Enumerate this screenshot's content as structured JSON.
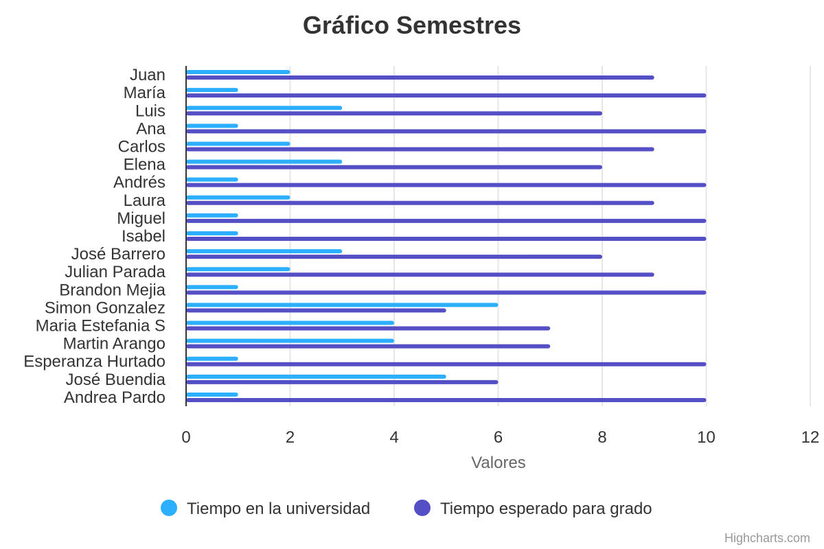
{
  "chart_data": {
    "type": "bar",
    "orientation": "horizontal",
    "title": "Gráfico Semestres",
    "xlabel": "",
    "ylabel": "Valores",
    "categories": [
      "Juan",
      "María",
      "Luis",
      "Ana",
      "Carlos",
      "Elena",
      "Andrés",
      "Laura",
      "Miguel",
      "Isabel",
      "José Barrero",
      "Julian Parada",
      "Brandon Mejia",
      "Simon Gonzalez",
      "Maria Estefania S",
      "Martin Arango",
      "Esperanza Hurtado",
      "José Buendia",
      "Andrea Pardo"
    ],
    "series": [
      {
        "name": "Tiempo en la universidad",
        "color": "#2caffe",
        "values": [
          2,
          1,
          3,
          1,
          2,
          3,
          1,
          2,
          1,
          1,
          3,
          2,
          1,
          6,
          4,
          4,
          1,
          5,
          1
        ]
      },
      {
        "name": "Tiempo esperado para grado",
        "color": "#544fc5",
        "values": [
          9,
          10,
          8,
          10,
          9,
          8,
          10,
          9,
          10,
          10,
          8,
          9,
          10,
          5,
          7,
          7,
          10,
          6,
          10
        ]
      }
    ],
    "ylim": [
      0,
      12
    ],
    "ticks": [
      "0",
      "2",
      "4",
      "6",
      "8",
      "10",
      "12"
    ],
    "grid": true,
    "legend": "bottom-center"
  },
  "credits": "Highcharts.com"
}
